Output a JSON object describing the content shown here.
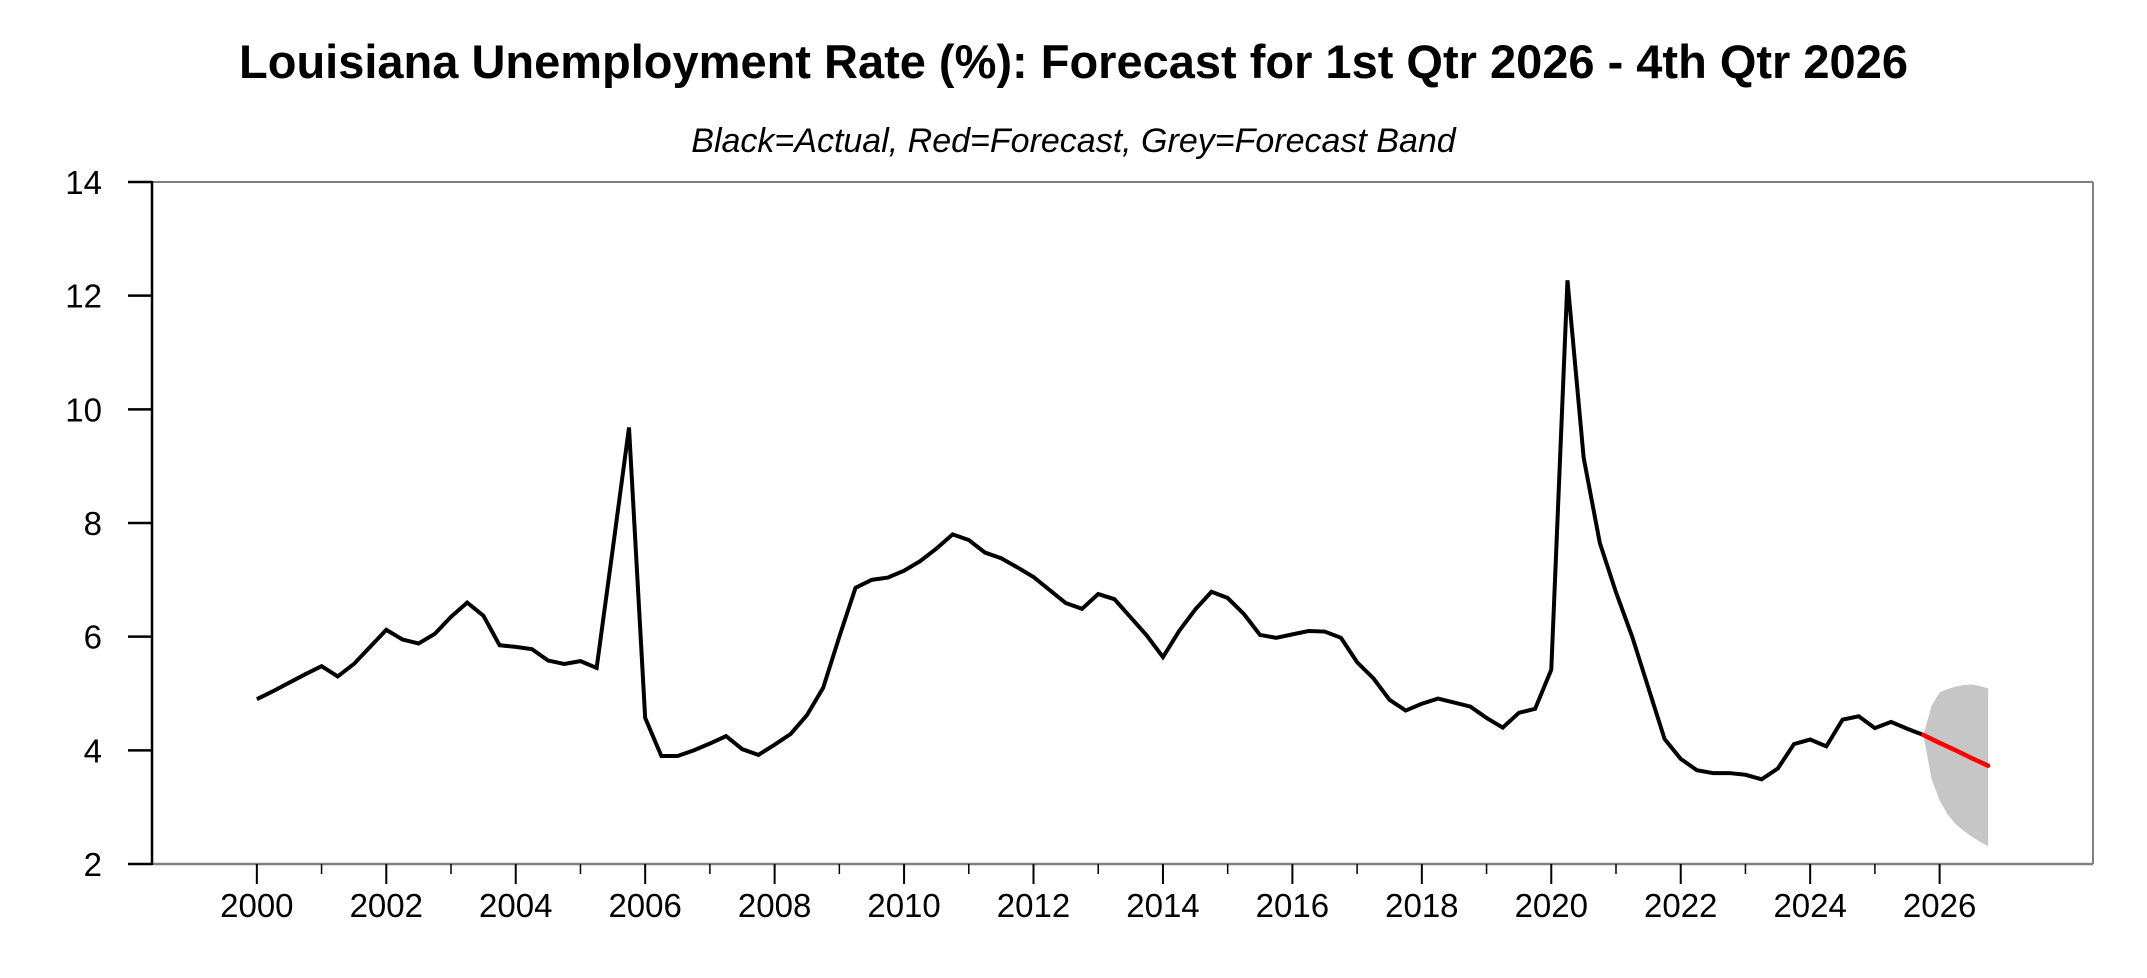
{
  "chart": {
    "title": "Louisiana Unemployment Rate (%): Forecast for 1st Qtr 2026 - 4th Qtr 2026",
    "subtitle": "Black=Actual, Red=Forecast, Grey=Forecast Band"
  },
  "colors": {
    "actual_line": "#000000",
    "forecast_line": "#ff0000",
    "forecast_band": "#c6c6c6",
    "frame": "#808080",
    "left_axis": "#000000",
    "tick": "#000000",
    "text": "#000000",
    "background": "#ffffff"
  },
  "chart_data": {
    "type": "line",
    "title": "Louisiana Unemployment Rate (%): Forecast for 1st Qtr 2026 - 4th Qtr 2026",
    "subtitle": "Black=Actual, Red=Forecast, Grey=Forecast Band",
    "grid": false,
    "legend_position": "none",
    "x_axis": {
      "range": [
        1998.38,
        2028.37
      ],
      "major_ticks": [
        2000,
        2002,
        2004,
        2006,
        2008,
        2010,
        2012,
        2014,
        2016,
        2018,
        2020,
        2022,
        2024,
        2026
      ],
      "minor_ticks": [
        2001,
        2003,
        2005,
        2007,
        2009,
        2011,
        2013,
        2015,
        2017,
        2019,
        2021,
        2023,
        2025
      ],
      "tick_labels": [
        "2000",
        "2002",
        "2004",
        "2006",
        "2008",
        "2010",
        "2012",
        "2014",
        "2016",
        "2018",
        "2020",
        "2022",
        "2024",
        "2026"
      ]
    },
    "y_axis": {
      "range": [
        2,
        14
      ],
      "ticks": [
        2,
        4,
        6,
        8,
        10,
        12,
        14
      ],
      "tick_labels": [
        "2",
        "4",
        "6",
        "8",
        "10",
        "12",
        "14"
      ]
    },
    "series": [
      {
        "name": "Actual",
        "role": "actual",
        "frequency": "quarterly",
        "start": "2000Q1",
        "end": "2025Q4",
        "values": [
          4.9,
          5.04,
          5.19,
          5.34,
          5.48,
          5.3,
          5.52,
          5.82,
          6.12,
          5.95,
          5.88,
          6.05,
          6.35,
          6.6,
          6.37,
          5.85,
          5.82,
          5.78,
          5.58,
          5.52,
          5.57,
          5.45,
          7.55,
          9.68,
          4.57,
          3.9,
          3.9,
          4.0,
          4.12,
          4.25,
          4.02,
          3.92,
          4.1,
          4.29,
          4.62,
          5.1,
          6.0,
          6.86,
          7.0,
          7.04,
          7.16,
          7.33,
          7.55,
          7.8,
          7.7,
          7.48,
          7.38,
          7.22,
          7.05,
          6.82,
          6.59,
          6.49,
          6.75,
          6.66,
          6.34,
          6.02,
          5.64,
          6.1,
          6.48,
          6.79,
          6.68,
          6.4,
          6.03,
          5.98,
          6.04,
          6.1,
          6.09,
          5.98,
          5.55,
          5.27,
          4.89,
          4.7,
          4.82,
          4.91,
          4.84,
          4.77,
          4.57,
          4.4,
          4.66,
          4.73,
          5.42,
          12.27,
          9.15,
          7.65,
          6.78,
          6.0,
          5.1,
          4.2,
          3.85,
          3.65,
          3.6,
          3.6,
          3.57,
          3.49,
          3.68,
          4.11,
          4.19,
          4.07,
          4.54,
          4.6,
          4.39,
          4.5,
          4.38,
          4.27
        ]
      },
      {
        "name": "Forecast",
        "role": "forecast",
        "frequency": "quarterly",
        "start": "2025Q4",
        "end": "2026Q4",
        "x": [
          2025.75,
          2026.0,
          2026.25,
          2026.5,
          2026.75
        ],
        "values": [
          4.27,
          4.13,
          4.0,
          3.86,
          3.73
        ]
      },
      {
        "name": "Forecast Band",
        "role": "band",
        "x": [
          2025.75,
          2025.875,
          2026.0,
          2026.125,
          2026.25,
          2026.375,
          2026.5,
          2026.625,
          2026.75
        ],
        "upper": [
          4.27,
          4.78,
          5.02,
          5.08,
          5.12,
          5.15,
          5.16,
          5.13,
          5.09
        ],
        "lower": [
          4.27,
          3.5,
          3.12,
          2.87,
          2.7,
          2.58,
          2.48,
          2.39,
          2.31
        ]
      }
    ]
  }
}
